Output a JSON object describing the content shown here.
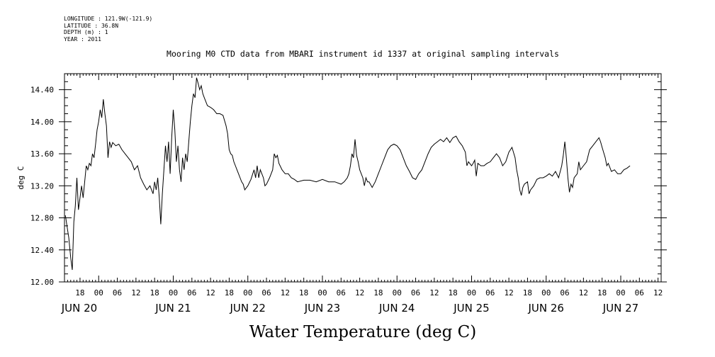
{
  "header": {
    "longitude": "LONGITUDE : 121.9W(-121.9)",
    "latitude": "LATITUDE : 36.8N",
    "depth": "DEPTH (m) : 1",
    "year": "YEAR : 2011"
  },
  "chart_data": {
    "type": "line",
    "title": "Mooring M0 CTD data from MBARI instrument id 1337 at original sampling intervals",
    "xlabel": "Water Temperature (deg C)",
    "ylabel": "deg C",
    "ylim": [
      12.0,
      14.6
    ],
    "yticks": [
      12.0,
      12.4,
      12.8,
      13.2,
      13.6,
      14.0,
      14.4
    ],
    "ytick_labels": [
      "12.00",
      "12.40",
      "12.80",
      "13.20",
      "13.60",
      "14.00",
      "14.40"
    ],
    "xlim_hours": [
      -11,
      181
    ],
    "hour_labels": [
      "18",
      "00",
      "06",
      "12",
      "18",
      "00",
      "06",
      "12",
      "18",
      "00",
      "06",
      "12",
      "18",
      "00",
      "06",
      "12",
      "18",
      "00",
      "06",
      "12",
      "18",
      "00",
      "06",
      "12",
      "18",
      "00",
      "06",
      "12",
      "18",
      "00",
      "06",
      "12"
    ],
    "day_labels": [
      "JUN 20",
      "JUN 21",
      "JUN 22",
      "JUN 23",
      "JUN 24",
      "JUN 25",
      "JUN 26",
      "JUN 27"
    ],
    "grid": false,
    "x_unit": "hours from 2011-06-20 00:00",
    "series": [
      {
        "name": "",
        "points": [
          [
            -10.7,
            12.83
          ],
          [
            -10.2,
            12.7
          ],
          [
            -9.6,
            12.55
          ],
          [
            -9.0,
            12.3
          ],
          [
            -8.5,
            12.15
          ],
          [
            -8.0,
            12.75
          ],
          [
            -7.5,
            12.95
          ],
          [
            -7.0,
            13.3
          ],
          [
            -6.5,
            12.9
          ],
          [
            -6.0,
            13.05
          ],
          [
            -5.5,
            13.2
          ],
          [
            -5.0,
            13.05
          ],
          [
            -4.5,
            13.25
          ],
          [
            -4.0,
            13.45
          ],
          [
            -3.5,
            13.4
          ],
          [
            -3.0,
            13.48
          ],
          [
            -2.5,
            13.45
          ],
          [
            -2.0,
            13.6
          ],
          [
            -1.5,
            13.55
          ],
          [
            -1.0,
            13.72
          ],
          [
            -0.5,
            13.9
          ],
          [
            0.0,
            14.0
          ],
          [
            0.5,
            14.15
          ],
          [
            1.0,
            14.05
          ],
          [
            1.5,
            14.28
          ],
          [
            2.0,
            14.1
          ],
          [
            2.5,
            13.95
          ],
          [
            3.0,
            13.55
          ],
          [
            3.5,
            13.75
          ],
          [
            4.0,
            13.68
          ],
          [
            4.5,
            13.74
          ],
          [
            5.5,
            13.7
          ],
          [
            6.5,
            13.72
          ],
          [
            7.5,
            13.65
          ],
          [
            8.5,
            13.6
          ],
          [
            9.5,
            13.55
          ],
          [
            10.5,
            13.5
          ],
          [
            11.5,
            13.4
          ],
          [
            12.5,
            13.45
          ],
          [
            13.5,
            13.3
          ],
          [
            14.5,
            13.22
          ],
          [
            15.5,
            13.15
          ],
          [
            16.5,
            13.2
          ],
          [
            17.5,
            13.1
          ],
          [
            18.0,
            13.25
          ],
          [
            18.5,
            13.15
          ],
          [
            19.0,
            13.3
          ],
          [
            19.5,
            13.05
          ],
          [
            20.0,
            12.72
          ],
          [
            20.5,
            13.1
          ],
          [
            21.0,
            13.4
          ],
          [
            21.5,
            13.7
          ],
          [
            22.0,
            13.5
          ],
          [
            22.5,
            13.75
          ],
          [
            23.0,
            13.35
          ],
          [
            23.5,
            13.8
          ],
          [
            24.0,
            14.15
          ],
          [
            24.5,
            13.9
          ],
          [
            25.0,
            13.5
          ],
          [
            25.5,
            13.7
          ],
          [
            26.0,
            13.4
          ],
          [
            26.5,
            13.25
          ],
          [
            27.0,
            13.55
          ],
          [
            27.5,
            13.4
          ],
          [
            28.0,
            13.6
          ],
          [
            28.5,
            13.5
          ],
          [
            29.0,
            13.75
          ],
          [
            29.5,
            14.0
          ],
          [
            30.0,
            14.2
          ],
          [
            30.5,
            14.35
          ],
          [
            31.0,
            14.3
          ],
          [
            31.5,
            14.55
          ],
          [
            32.0,
            14.48
          ],
          [
            32.5,
            14.4
          ],
          [
            33.0,
            14.45
          ],
          [
            33.5,
            14.35
          ],
          [
            34.0,
            14.3
          ],
          [
            35.0,
            14.2
          ],
          [
            36.0,
            14.18
          ],
          [
            37.0,
            14.15
          ],
          [
            38.0,
            14.1
          ],
          [
            39.0,
            14.1
          ],
          [
            40.0,
            14.08
          ],
          [
            41.0,
            13.95
          ],
          [
            41.5,
            13.85
          ],
          [
            42.0,
            13.65
          ],
          [
            42.5,
            13.6
          ],
          [
            43.0,
            13.58
          ],
          [
            43.5,
            13.5
          ],
          [
            44.0,
            13.45
          ],
          [
            44.5,
            13.4
          ],
          [
            45.0,
            13.35
          ],
          [
            45.5,
            13.3
          ],
          [
            46.0,
            13.25
          ],
          [
            46.5,
            13.22
          ],
          [
            47.0,
            13.15
          ],
          [
            48.0,
            13.2
          ],
          [
            49.0,
            13.28
          ],
          [
            50.0,
            13.4
          ],
          [
            50.5,
            13.3
          ],
          [
            51.0,
            13.45
          ],
          [
            51.5,
            13.3
          ],
          [
            52.0,
            13.4
          ],
          [
            52.5,
            13.35
          ],
          [
            53.0,
            13.3
          ],
          [
            53.5,
            13.2
          ],
          [
            54.0,
            13.22
          ],
          [
            55.0,
            13.3
          ],
          [
            56.0,
            13.4
          ],
          [
            56.5,
            13.6
          ],
          [
            57.0,
            13.55
          ],
          [
            57.5,
            13.58
          ],
          [
            58.0,
            13.48
          ],
          [
            59.0,
            13.4
          ],
          [
            60.0,
            13.35
          ],
          [
            61.0,
            13.35
          ],
          [
            62.0,
            13.3
          ],
          [
            63.0,
            13.28
          ],
          [
            64.0,
            13.25
          ],
          [
            66.0,
            13.27
          ],
          [
            68.0,
            13.27
          ],
          [
            70.0,
            13.25
          ],
          [
            72.0,
            13.28
          ],
          [
            74.0,
            13.25
          ],
          [
            76.0,
            13.25
          ],
          [
            78.0,
            13.22
          ],
          [
            79.0,
            13.25
          ],
          [
            80.0,
            13.3
          ],
          [
            80.5,
            13.35
          ],
          [
            81.0,
            13.45
          ],
          [
            81.5,
            13.6
          ],
          [
            82.0,
            13.55
          ],
          [
            82.5,
            13.78
          ],
          [
            83.0,
            13.58
          ],
          [
            83.5,
            13.5
          ],
          [
            84.0,
            13.4
          ],
          [
            84.5,
            13.35
          ],
          [
            85.0,
            13.3
          ],
          [
            85.5,
            13.2
          ],
          [
            86.0,
            13.3
          ],
          [
            86.5,
            13.25
          ],
          [
            87.0,
            13.25
          ],
          [
            88.0,
            13.18
          ],
          [
            89.0,
            13.25
          ],
          [
            90.0,
            13.35
          ],
          [
            91.0,
            13.45
          ],
          [
            92.0,
            13.55
          ],
          [
            93.0,
            13.65
          ],
          [
            94.0,
            13.7
          ],
          [
            95.0,
            13.72
          ],
          [
            96.0,
            13.7
          ],
          [
            97.0,
            13.65
          ],
          [
            98.0,
            13.55
          ],
          [
            99.0,
            13.45
          ],
          [
            100.0,
            13.38
          ],
          [
            101.0,
            13.3
          ],
          [
            102.0,
            13.28
          ],
          [
            103.0,
            13.35
          ],
          [
            104.0,
            13.4
          ],
          [
            105.0,
            13.5
          ],
          [
            106.0,
            13.6
          ],
          [
            107.0,
            13.68
          ],
          [
            108.0,
            13.72
          ],
          [
            109.0,
            13.75
          ],
          [
            110.0,
            13.78
          ],
          [
            111.0,
            13.75
          ],
          [
            112.0,
            13.8
          ],
          [
            113.0,
            13.74
          ],
          [
            114.0,
            13.8
          ],
          [
            115.0,
            13.82
          ],
          [
            116.0,
            13.75
          ],
          [
            117.0,
            13.7
          ],
          [
            118.0,
            13.62
          ],
          [
            118.5,
            13.45
          ],
          [
            119.0,
            13.5
          ],
          [
            120.0,
            13.45
          ],
          [
            120.5,
            13.48
          ],
          [
            121.0,
            13.52
          ],
          [
            121.5,
            13.32
          ],
          [
            122.0,
            13.48
          ],
          [
            123.0,
            13.45
          ],
          [
            124.0,
            13.45
          ],
          [
            125.0,
            13.48
          ],
          [
            126.0,
            13.5
          ],
          [
            127.0,
            13.55
          ],
          [
            128.0,
            13.6
          ],
          [
            129.0,
            13.55
          ],
          [
            130.0,
            13.45
          ],
          [
            131.0,
            13.5
          ],
          [
            132.0,
            13.62
          ],
          [
            133.0,
            13.68
          ],
          [
            134.0,
            13.55
          ],
          [
            134.5,
            13.4
          ],
          [
            135.0,
            13.3
          ],
          [
            135.5,
            13.15
          ],
          [
            136.0,
            13.08
          ],
          [
            136.5,
            13.18
          ],
          [
            137.0,
            13.22
          ],
          [
            138.0,
            13.25
          ],
          [
            138.5,
            13.1
          ],
          [
            139.0,
            13.15
          ],
          [
            140.0,
            13.2
          ],
          [
            141.0,
            13.28
          ],
          [
            142.0,
            13.3
          ],
          [
            143.0,
            13.3
          ],
          [
            144.0,
            13.32
          ],
          [
            145.0,
            13.35
          ],
          [
            146.0,
            13.32
          ],
          [
            147.0,
            13.38
          ],
          [
            148.0,
            13.3
          ],
          [
            149.0,
            13.45
          ],
          [
            149.5,
            13.58
          ],
          [
            150.0,
            13.75
          ],
          [
            150.5,
            13.55
          ],
          [
            151.0,
            13.3
          ],
          [
            151.5,
            13.12
          ],
          [
            152.0,
            13.22
          ],
          [
            152.5,
            13.18
          ],
          [
            153.0,
            13.3
          ],
          [
            154.0,
            13.35
          ],
          [
            154.5,
            13.5
          ],
          [
            155.0,
            13.4
          ],
          [
            156.0,
            13.45
          ],
          [
            157.0,
            13.5
          ],
          [
            158.0,
            13.65
          ],
          [
            159.0,
            13.7
          ],
          [
            160.0,
            13.75
          ],
          [
            161.0,
            13.8
          ],
          [
            161.5,
            13.75
          ],
          [
            162.0,
            13.68
          ],
          [
            163.0,
            13.55
          ],
          [
            163.5,
            13.45
          ],
          [
            164.0,
            13.48
          ],
          [
            165.0,
            13.38
          ],
          [
            166.0,
            13.4
          ],
          [
            167.0,
            13.35
          ],
          [
            168.0,
            13.35
          ],
          [
            169.0,
            13.4
          ],
          [
            170.0,
            13.42
          ],
          [
            171.0,
            13.45
          ]
        ]
      }
    ]
  }
}
